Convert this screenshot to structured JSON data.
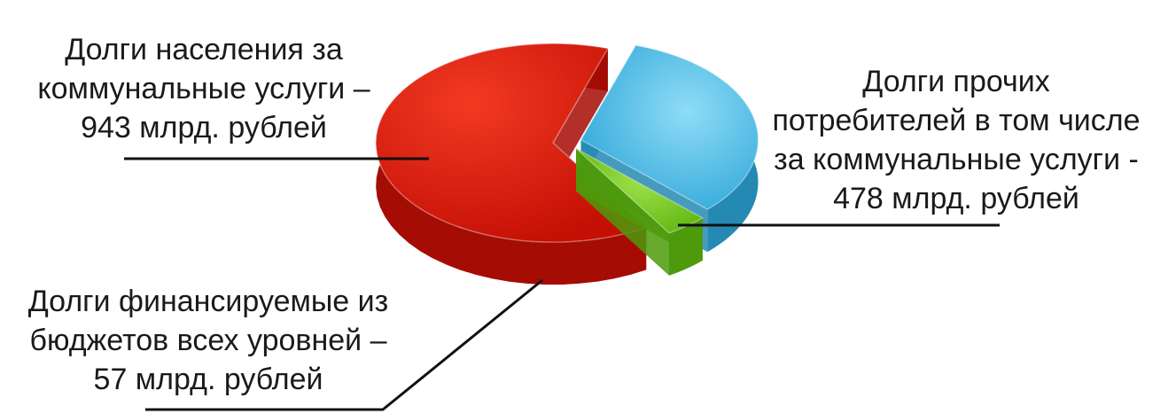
{
  "chart_data": {
    "type": "pie",
    "style": "3d-exploded",
    "unit": "млрд. рублей",
    "slices": [
      {
        "label_lines": [
          "Долги населения за",
          "коммунальные услуги –",
          "943 млрд. рублей"
        ],
        "value": 943,
        "color": "#d91a0c"
      },
      {
        "label_lines": [
          "Долги прочих",
          "потребителей в том числе",
          "за коммунальные услуги -",
          "478 млрд. рублей"
        ],
        "value": 478,
        "color": "#35b4e2"
      },
      {
        "label_lines": [
          "Долги финансируемые из",
          "бюджетов всех уровней –",
          "57 млрд. рублей"
        ],
        "value": 57,
        "color": "#78cc22"
      }
    ]
  }
}
